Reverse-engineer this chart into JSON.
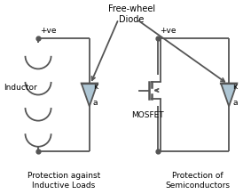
{
  "bg_color": "#ffffff",
  "text_color": "#000000",
  "line_color": "#555555",
  "diode_fill": "#aec6d4",
  "font_size": 6.5,
  "title_top": "Free-wheel\nDiode",
  "label_left_top": "+ve",
  "label_right_top": "+ve",
  "label_inductor": "Inductor",
  "label_mosfet": "MOSFET",
  "label_k_left": "k",
  "label_a_left": "a",
  "label_k_right": "k",
  "label_a_right": "a",
  "caption_left": "Protection against\nInductive Loads",
  "caption_right": "Protection of\nSemiconductors"
}
